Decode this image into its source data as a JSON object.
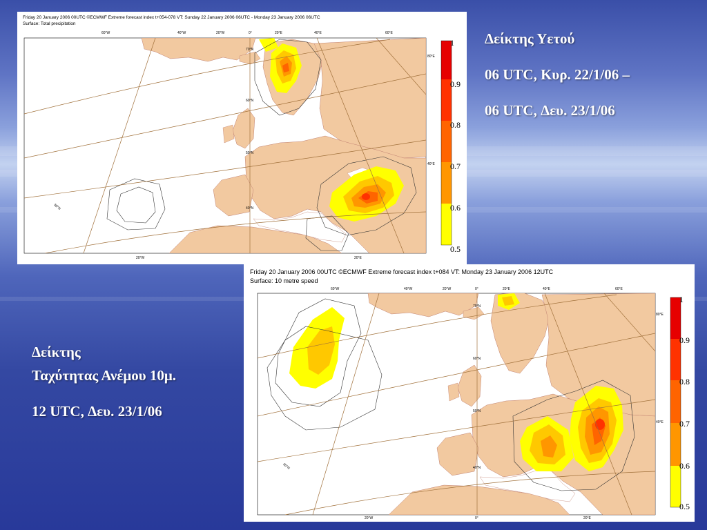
{
  "slide": {
    "precip_title": "Δείκτης Υετού",
    "precip_period_line1": "06 UTC, Κυρ. 22/1/06 –",
    "precip_period_line2": "06 UTC, Δευ. 23/1/06",
    "wind_title_line1": "Δείκτης",
    "wind_title_line2": "Ταχύτητας Ανέμου 10μ.",
    "wind_time": "12 UTC, Δευ. 23/1/06"
  },
  "panel_precip": {
    "header_line1": "Friday 20 January 2006 00UTC ©ECMWF Extreme forecast index t+054-078 VT: Sunday 22 January 2006 06UTC - Monday 23 January 2006 06UTC",
    "header_line2": "Surface: Total precipitation",
    "colorbar_labels": [
      "1",
      "0.9",
      "0.8",
      "0.7",
      "0.6",
      "0.5"
    ],
    "lon_labels_top": [
      "60°W",
      "40°W",
      "20°W",
      "0°",
      "20°E",
      "40°E",
      "60°E"
    ],
    "lon_labels_bottom": [
      "20°W",
      "20°E"
    ],
    "lat_labels": [
      "80°E",
      "40°E",
      "30°N",
      "50°N",
      "40°N",
      "70°N",
      "60°N"
    ]
  },
  "panel_wind": {
    "header_line1": "Friday 20 January 2006 00UTC ©ECMWF Extreme forecast index t+084 VT: Monday 23 January 2006 12UTC",
    "header_line2": "Surface: 10 metre speed",
    "colorbar_labels": [
      "1",
      "0.9",
      "0.8",
      "0.7",
      "0.6",
      "0.5"
    ],
    "lon_labels_top": [
      "60°W",
      "40°W",
      "20°W",
      "0°",
      "20°E",
      "40°E",
      "60°E"
    ],
    "lon_labels_bottom": [
      "20°W",
      "0°",
      "20°E"
    ],
    "lat_labels": [
      "80°E",
      "40°E",
      "30°N",
      "50°N",
      "40°N",
      "70°N",
      "60°N"
    ]
  },
  "colors": {
    "land": "#f2c9a0",
    "ocean": "#ffffff",
    "efi_05": "#ffff00",
    "efi_06": "#ffc800",
    "efi_07": "#ff9600",
    "efi_08": "#ff6400",
    "efi_09": "#ff3200",
    "efi_10": "#e60000"
  }
}
